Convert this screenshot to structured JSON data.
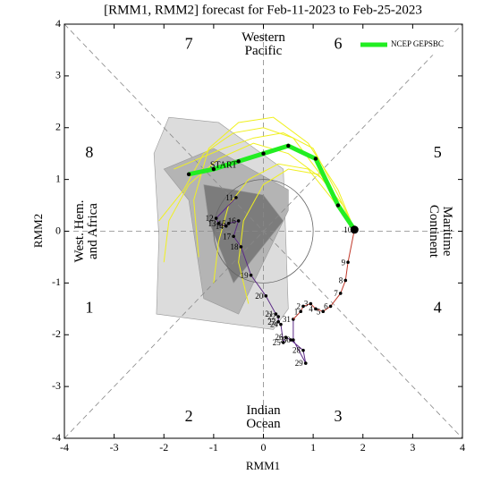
{
  "chart_data": {
    "type": "phase",
    "title": "[RMM1, RMM2] forecast for Feb-11-2023 to Feb-25-2023",
    "x_label": "RMM1",
    "y_label": "RMM2",
    "xlim": [
      -4,
      4
    ],
    "ylim": [
      -4,
      4
    ],
    "xticks": [
      -4,
      -3,
      -2,
      -1,
      0,
      1,
      2,
      3,
      4
    ],
    "yticks": [
      -4,
      -3,
      -2,
      -1,
      0,
      1,
      2,
      3,
      4
    ],
    "phases": [
      "1",
      "2",
      "3",
      "4",
      "5",
      "6",
      "7",
      "8"
    ],
    "regions": [
      [
        "Western",
        "Pacific"
      ],
      [
        "Maritime",
        "Continent"
      ],
      [
        "Indian",
        "Ocean"
      ],
      [
        "West. Hem.",
        "and Africa"
      ]
    ],
    "start_label": "START",
    "legend": "top-right",
    "spread": [
      {
        "color": "#dcdcdc",
        "x": [
          -1.9,
          -0.9,
          0.4,
          0.5,
          0.2,
          -2.15,
          -2.1,
          -2.2
        ],
        "y": [
          2.2,
          2.1,
          1.2,
          -1.5,
          -1.9,
          -1.6,
          -0.1,
          1.5
        ]
      },
      {
        "color": "#b4b4b4",
        "x": [
          -2.0,
          -1.0,
          0.5,
          0.5,
          -0.5,
          -1.2,
          -1.5
        ],
        "y": [
          1.2,
          1.6,
          0.8,
          0.4,
          -1.6,
          -1.3,
          0.6
        ]
      },
      {
        "color": "#7c7c7c",
        "x": [
          -1.2,
          0.0,
          0.4,
          -0.6,
          -1.1
        ],
        "y": [
          0.9,
          0.7,
          0.2,
          -1.0,
          0.2
        ]
      }
    ],
    "member_color": "#f0f020",
    "members": [
      {
        "x": [
          1.83,
          1.5,
          1.0,
          0.4,
          -0.2,
          -0.8,
          -1.3,
          -1.8
        ],
        "y": [
          0.03,
          0.7,
          1.6,
          1.9,
          1.8,
          1.6,
          1.4,
          1.2
        ]
      },
      {
        "x": [
          1.83,
          1.4,
          0.9,
          0.3,
          -0.3,
          -0.7,
          -0.9,
          -1.0
        ],
        "y": [
          0.03,
          0.6,
          1.2,
          1.3,
          1.0,
          0.5,
          -0.2,
          -1.0
        ]
      },
      {
        "x": [
          1.83,
          1.3,
          0.6,
          0.0,
          -0.6,
          -1.2,
          -1.6,
          -2.1
        ],
        "y": [
          0.03,
          0.9,
          1.8,
          2.0,
          1.9,
          1.5,
          0.8,
          0.2
        ]
      },
      {
        "x": [
          1.83,
          1.6,
          1.1,
          0.5,
          0.0,
          -0.4,
          -0.5,
          -0.3
        ],
        "y": [
          0.03,
          0.5,
          1.1,
          1.2,
          0.9,
          0.2,
          -0.6,
          -1.4
        ]
      },
      {
        "x": [
          1.83,
          1.2,
          0.5,
          -0.2,
          -0.9,
          -1.5,
          -1.9,
          -2.0
        ],
        "y": [
          0.03,
          1.0,
          1.5,
          1.7,
          1.4,
          0.9,
          0.2,
          -0.6
        ]
      },
      {
        "x": [
          1.83,
          1.5,
          0.9,
          0.2,
          -0.5,
          -1.1,
          -1.4,
          -1.3
        ],
        "y": [
          0.03,
          0.8,
          1.7,
          2.2,
          2.1,
          1.6,
          0.6,
          -0.5
        ]
      }
    ],
    "series": [
      {
        "name": "NCEP GEPSBC",
        "color": "#22ee22",
        "x": [
          1.83,
          1.5,
          1.05,
          0.5,
          0.0,
          -0.5,
          -1.0,
          -1.5
        ],
        "y": [
          0.03,
          0.5,
          1.4,
          1.65,
          1.5,
          1.35,
          1.2,
          1.1
        ]
      }
    ],
    "observed": [
      {
        "color": "#5b2a86",
        "labels": [
          "11",
          "12",
          "13",
          "14",
          "15",
          "16",
          "17",
          "18",
          "19",
          "20",
          "21",
          "22",
          "23",
          "24",
          "25",
          "26",
          "27",
          "28",
          "29",
          "30",
          "31"
        ],
        "x": [
          -0.55,
          -0.95,
          -0.9,
          -0.75,
          -0.7,
          -0.5,
          -0.6,
          -0.45,
          -0.25,
          0.05,
          0.25,
          0.3,
          0.3,
          0.35,
          0.4,
          0.45,
          0.55,
          0.8,
          0.85,
          0.6,
          0.6
        ],
        "y": [
          0.65,
          0.25,
          0.15,
          0.1,
          0.15,
          0.2,
          -0.1,
          -0.3,
          -0.85,
          -1.25,
          -1.6,
          -1.65,
          -1.75,
          -1.8,
          -2.15,
          -2.05,
          -2.1,
          -2.3,
          -2.55,
          -2.1,
          -1.7
        ]
      },
      {
        "color": "#c0392b",
        "labels": [
          "1",
          "2",
          "3",
          "4",
          "5",
          "6",
          "7",
          "8",
          "9",
          "10"
        ],
        "x": [
          0.75,
          0.8,
          0.95,
          1.05,
          1.2,
          1.35,
          1.55,
          1.65,
          1.7,
          1.83
        ],
        "y": [
          -1.55,
          -1.45,
          -1.4,
          -1.5,
          -1.55,
          -1.45,
          -1.2,
          -0.95,
          -0.6,
          0.03
        ]
      }
    ]
  }
}
